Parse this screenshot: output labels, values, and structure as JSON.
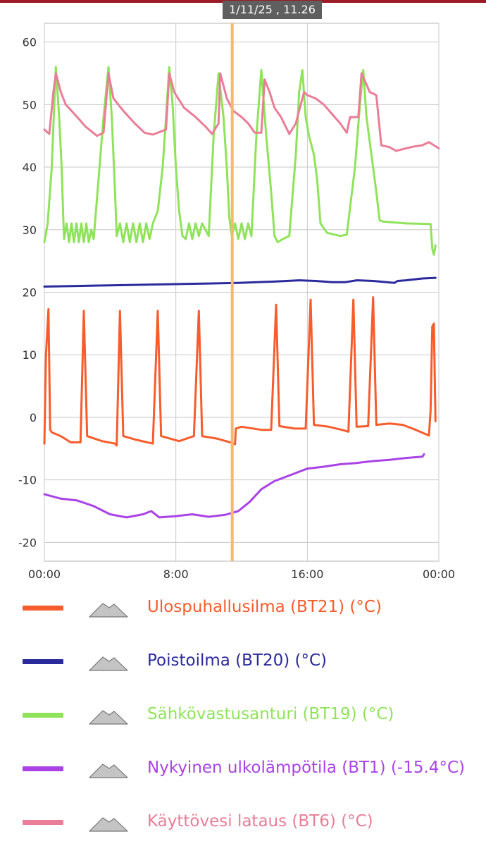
{
  "cursor": {
    "label": "1/11/25 , 11.26",
    "color": "#f6b96b",
    "x": 11.43
  },
  "legend": {
    "icon_name": "mountain-icon",
    "items": [
      {
        "label": "Ulospuhallusilma (BT21) (°C)",
        "color": "#f75c2c"
      },
      {
        "label": "Poistoilma (BT20) (°C)",
        "color": "#2b2a9c"
      },
      {
        "label": "Sähkövastusanturi (BT19) (°C)",
        "color": "#8fe35a"
      },
      {
        "label": "Nykyinen ulkolämpötila (BT1) (-15.4°C)",
        "color": "#a943e6"
      },
      {
        "label": "Käyttövesi lataus (BT6) (°C)",
        "color": "#ea7d97"
      }
    ]
  },
  "chart_data": {
    "type": "line",
    "title": "",
    "xlabel": "",
    "ylabel": "",
    "xlim": [
      0,
      24
    ],
    "ylim": [
      -23,
      63
    ],
    "x_ticks": [
      {
        "value": 0,
        "label": "00:00"
      },
      {
        "value": 8,
        "label": "8:00"
      },
      {
        "value": 16,
        "label": "16:00"
      },
      {
        "value": 24,
        "label": "00:00"
      }
    ],
    "y_ticks": [
      -20,
      -10,
      0,
      10,
      20,
      30,
      40,
      50,
      60
    ],
    "grid": true,
    "legend_position": "bottom",
    "series": [
      {
        "name": "Ulospuhallusilma (BT21) (°C)",
        "color": "#f75c2c",
        "points": [
          [
            0,
            -4.2
          ],
          [
            0.1,
            10
          ],
          [
            0.25,
            17.3
          ],
          [
            0.35,
            -2
          ],
          [
            0.45,
            -2.4
          ],
          [
            1.0,
            -3
          ],
          [
            1.6,
            -4
          ],
          [
            2.2,
            -4
          ],
          [
            2.4,
            17
          ],
          [
            2.6,
            -3
          ],
          [
            3.5,
            -3.8
          ],
          [
            4.3,
            -4.2
          ],
          [
            4.4,
            -4.5
          ],
          [
            4.6,
            17
          ],
          [
            4.8,
            -3
          ],
          [
            5.6,
            -3.6
          ],
          [
            6.6,
            -4.2
          ],
          [
            6.9,
            17
          ],
          [
            7.1,
            -3
          ],
          [
            8.2,
            -3.8
          ],
          [
            9.1,
            -3
          ],
          [
            9.4,
            17
          ],
          [
            9.6,
            -3
          ],
          [
            10.5,
            -3.4
          ],
          [
            11.3,
            -4
          ],
          [
            11.6,
            -4.3
          ],
          [
            11.65,
            -1.8
          ],
          [
            12.0,
            -1.5
          ],
          [
            13.2,
            -2
          ],
          [
            13.8,
            -2
          ],
          [
            14.1,
            18
          ],
          [
            14.3,
            -1.4
          ],
          [
            15.2,
            -1.8
          ],
          [
            15.9,
            -1.8
          ],
          [
            16.2,
            18.8
          ],
          [
            16.4,
            -1.2
          ],
          [
            17.3,
            -1.5
          ],
          [
            18.1,
            -2
          ],
          [
            18.5,
            -2.3
          ],
          [
            18.8,
            18.8
          ],
          [
            19.0,
            -1.5
          ],
          [
            19.7,
            -1.4
          ],
          [
            20.0,
            19.2
          ],
          [
            20.2,
            -1.2
          ],
          [
            21.0,
            -1
          ],
          [
            21.8,
            -1.2
          ],
          [
            22.6,
            -2
          ],
          [
            23.4,
            -2.9
          ],
          [
            23.5,
            1
          ],
          [
            23.6,
            14.5
          ],
          [
            23.7,
            15
          ],
          [
            23.8,
            -0.6
          ]
        ]
      },
      {
        "name": "Poistoilma (BT20) (°C)",
        "color": "#2b2a9c",
        "points": [
          [
            0,
            20.9
          ],
          [
            2,
            21
          ],
          [
            4,
            21.1
          ],
          [
            6,
            21.2
          ],
          [
            8,
            21.3
          ],
          [
            10,
            21.4
          ],
          [
            11.8,
            21.5
          ],
          [
            14,
            21.7
          ],
          [
            15.5,
            21.9
          ],
          [
            16.5,
            21.8
          ],
          [
            17.5,
            21.6
          ],
          [
            18.3,
            21.6
          ],
          [
            19.0,
            21.9
          ],
          [
            20.0,
            21.8
          ],
          [
            21.3,
            21.5
          ],
          [
            21.5,
            21.8
          ],
          [
            22.0,
            21.9
          ],
          [
            23.0,
            22.2
          ],
          [
            23.8,
            22.3
          ]
        ]
      },
      {
        "name": "Sähkövastusanturi (BT19) (°C)",
        "color": "#8fe35a",
        "points": [
          [
            0,
            28
          ],
          [
            0.2,
            31
          ],
          [
            0.45,
            40
          ],
          [
            0.6,
            50
          ],
          [
            0.7,
            56
          ],
          [
            0.9,
            48
          ],
          [
            1.05,
            40
          ],
          [
            1.15,
            32
          ],
          [
            1.2,
            28.5
          ],
          [
            1.35,
            31
          ],
          [
            1.5,
            28
          ],
          [
            1.65,
            31
          ],
          [
            1.8,
            28
          ],
          [
            1.95,
            31
          ],
          [
            2.1,
            28
          ],
          [
            2.25,
            31
          ],
          [
            2.4,
            28
          ],
          [
            2.55,
            31
          ],
          [
            2.7,
            28
          ],
          [
            2.85,
            30
          ],
          [
            3.0,
            28.5
          ],
          [
            3.2,
            35
          ],
          [
            3.6,
            48
          ],
          [
            3.9,
            56
          ],
          [
            4.1,
            48
          ],
          [
            4.3,
            36
          ],
          [
            4.4,
            29
          ],
          [
            4.6,
            31
          ],
          [
            4.8,
            28
          ],
          [
            5.0,
            31
          ],
          [
            5.2,
            28
          ],
          [
            5.4,
            31
          ],
          [
            5.6,
            28
          ],
          [
            5.8,
            31
          ],
          [
            6.0,
            28
          ],
          [
            6.2,
            31
          ],
          [
            6.4,
            28.5
          ],
          [
            6.6,
            31
          ],
          [
            6.9,
            33
          ],
          [
            7.2,
            40
          ],
          [
            7.5,
            52
          ],
          [
            7.6,
            56
          ],
          [
            7.8,
            50
          ],
          [
            8.0,
            40
          ],
          [
            8.2,
            33
          ],
          [
            8.4,
            29
          ],
          [
            8.6,
            28.5
          ],
          [
            8.8,
            31
          ],
          [
            9.0,
            28.5
          ],
          [
            9.2,
            31
          ],
          [
            9.4,
            29
          ],
          [
            9.6,
            31
          ],
          [
            9.8,
            30
          ],
          [
            10.0,
            29
          ],
          [
            10.3,
            45
          ],
          [
            10.6,
            55
          ],
          [
            10.9,
            48
          ],
          [
            11.1,
            40
          ],
          [
            11.25,
            32
          ],
          [
            11.4,
            29
          ],
          [
            11.6,
            31
          ],
          [
            11.8,
            28.5
          ],
          [
            12.0,
            31
          ],
          [
            12.2,
            28.5
          ],
          [
            12.4,
            31
          ],
          [
            12.6,
            29
          ],
          [
            12.9,
            45
          ],
          [
            13.2,
            55.5
          ],
          [
            13.5,
            45
          ],
          [
            13.8,
            36
          ],
          [
            14.0,
            29
          ],
          [
            14.2,
            28
          ],
          [
            14.5,
            28.5
          ],
          [
            14.9,
            29
          ],
          [
            15.3,
            42
          ],
          [
            15.5,
            52
          ],
          [
            15.7,
            55.5
          ],
          [
            15.9,
            48
          ],
          [
            16.1,
            45
          ],
          [
            16.4,
            42
          ],
          [
            16.6,
            38
          ],
          [
            16.8,
            31
          ],
          [
            17.2,
            29.5
          ],
          [
            18.0,
            29
          ],
          [
            18.4,
            29.2
          ],
          [
            18.9,
            40
          ],
          [
            19.2,
            50
          ],
          [
            19.4,
            55.5
          ],
          [
            19.6,
            48
          ],
          [
            19.9,
            42
          ],
          [
            20.2,
            36
          ],
          [
            20.4,
            31.5
          ],
          [
            20.6,
            31.3
          ],
          [
            22.0,
            31
          ],
          [
            23.5,
            30.9
          ],
          [
            23.6,
            27
          ],
          [
            23.7,
            26
          ],
          [
            23.8,
            27.5
          ]
        ]
      },
      {
        "name": "Nykyinen ulkolämpötila (BT1) (-15.4°C)",
        "color": "#a943e6",
        "points": [
          [
            0,
            -12.3
          ],
          [
            1,
            -13
          ],
          [
            2,
            -13.3
          ],
          [
            3,
            -14.2
          ],
          [
            4,
            -15.5
          ],
          [
            5,
            -16
          ],
          [
            6,
            -15.5
          ],
          [
            6.5,
            -15
          ],
          [
            7,
            -16
          ],
          [
            8,
            -15.8
          ],
          [
            9,
            -15.5
          ],
          [
            10,
            -15.9
          ],
          [
            11,
            -15.6
          ],
          [
            11.8,
            -15
          ],
          [
            12.5,
            -13.5
          ],
          [
            13.2,
            -11.5
          ],
          [
            14,
            -10.2
          ],
          [
            15,
            -9.2
          ],
          [
            16,
            -8.2
          ],
          [
            17,
            -7.9
          ],
          [
            18,
            -7.5
          ],
          [
            19,
            -7.3
          ],
          [
            20,
            -7
          ],
          [
            21,
            -6.8
          ],
          [
            22,
            -6.5
          ],
          [
            23,
            -6.3
          ],
          [
            23.1,
            -5.9
          ]
        ]
      },
      {
        "name": "Käyttövesi lataus (BT6) (°C)",
        "color": "#ea7d97",
        "points": [
          [
            0,
            46
          ],
          [
            0.3,
            45.3
          ],
          [
            0.55,
            52
          ],
          [
            0.7,
            55
          ],
          [
            1.0,
            52
          ],
          [
            1.3,
            50
          ],
          [
            2.0,
            48
          ],
          [
            2.5,
            46.5
          ],
          [
            3.2,
            45
          ],
          [
            3.6,
            45.5
          ],
          [
            3.9,
            55
          ],
          [
            4.2,
            51
          ],
          [
            4.8,
            49
          ],
          [
            5.5,
            47
          ],
          [
            6.1,
            45.5
          ],
          [
            6.6,
            45.2
          ],
          [
            7.4,
            46
          ],
          [
            7.6,
            55
          ],
          [
            7.9,
            52
          ],
          [
            8.5,
            49.5
          ],
          [
            9.2,
            48
          ],
          [
            9.8,
            46.5
          ],
          [
            10.2,
            45.3
          ],
          [
            10.6,
            47
          ],
          [
            10.7,
            55
          ],
          [
            11.1,
            51
          ],
          [
            11.5,
            49
          ],
          [
            12.0,
            48
          ],
          [
            12.4,
            47
          ],
          [
            12.8,
            45.5
          ],
          [
            13.2,
            45.5
          ],
          [
            13.4,
            54
          ],
          [
            13.7,
            52
          ],
          [
            14.0,
            49.5
          ],
          [
            14.4,
            48
          ],
          [
            14.9,
            45.3
          ],
          [
            15.3,
            47
          ],
          [
            15.8,
            52
          ],
          [
            16.0,
            51.5
          ],
          [
            16.5,
            51
          ],
          [
            17.0,
            50
          ],
          [
            17.5,
            48.5
          ],
          [
            18.0,
            47
          ],
          [
            18.4,
            45.5
          ],
          [
            18.6,
            48
          ],
          [
            19.1,
            48
          ],
          [
            19.3,
            55
          ],
          [
            19.8,
            52
          ],
          [
            20.2,
            51.5
          ],
          [
            20.5,
            43.5
          ],
          [
            21.0,
            43.2
          ],
          [
            21.4,
            42.6
          ],
          [
            22.0,
            43
          ],
          [
            22.5,
            43.3
          ],
          [
            23.0,
            43.5
          ],
          [
            23.4,
            44
          ],
          [
            23.7,
            43.5
          ],
          [
            24.0,
            43
          ]
        ]
      }
    ]
  }
}
